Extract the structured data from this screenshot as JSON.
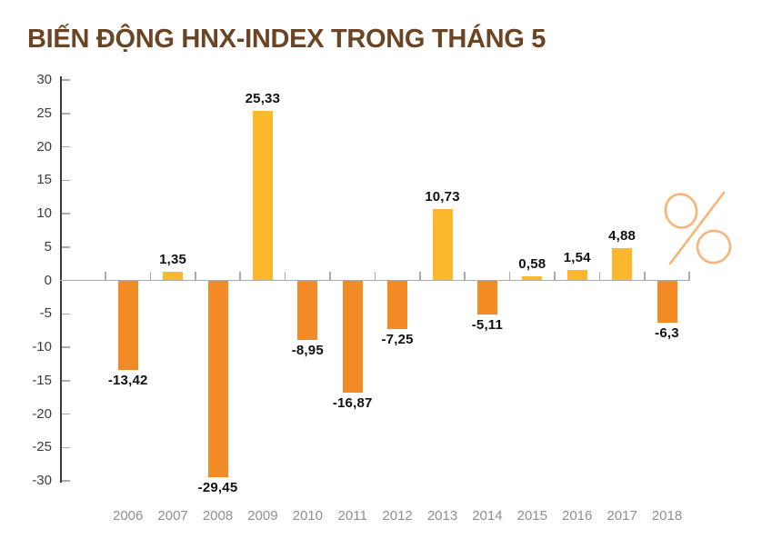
{
  "title": "BIẾN ĐỘNG HNX-INDEX TRONG THÁNG 5",
  "percent_symbol": "%",
  "colors": {
    "title": "#6B4424",
    "positive_bar": "#FCB82D",
    "negative_bar": "#F28A26",
    "axis_line": "#3C3C3C",
    "tick_line": "#ABABAB",
    "zero_line": "#ABABAB",
    "value_label": "#111111",
    "y_axis_label": "#3C3C3C",
    "x_axis_label": "#8F8F8F",
    "percent_symbol": "#F8B478",
    "background": "#FFFFFF"
  },
  "chart_data": {
    "type": "bar",
    "title": "BIẾN ĐỘNG HNX-INDEX TRONG THÁNG 5",
    "unit": "%",
    "categories": [
      "2006",
      "2007",
      "2008",
      "2009",
      "2010",
      "2011",
      "2012",
      "2013",
      "2014",
      "2015",
      "2016",
      "2017",
      "2018"
    ],
    "values": [
      -13.42,
      1.35,
      -29.45,
      25.33,
      -8.95,
      -16.87,
      -7.25,
      10.73,
      -5.11,
      0.58,
      1.54,
      4.88,
      -6.3
    ],
    "value_labels": [
      "-13,42",
      "1,35",
      "-29,45",
      "25,33",
      "-8,95",
      "-16,87",
      "-7,25",
      "10,73",
      "-5,11",
      "0,58",
      "1,54",
      "4,88",
      "-6,3"
    ],
    "ylim": [
      -30,
      30
    ],
    "ytick_step": 5,
    "ytick_labels": [
      "30",
      "25",
      "20",
      "15",
      "10",
      "5",
      "0",
      "-5",
      "-10",
      "-15",
      "-20",
      "-25",
      "-30"
    ],
    "grid": false,
    "legend": false,
    "xlabel": "",
    "ylabel": ""
  }
}
